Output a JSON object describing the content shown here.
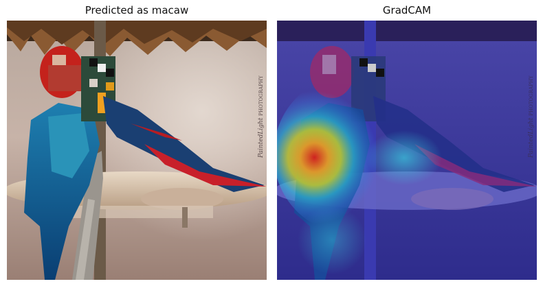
{
  "panels": [
    {
      "title": "Predicted as macaw"
    },
    {
      "title": "GradCAM"
    }
  ],
  "watermark": {
    "script": "PaintedLight",
    "caps": "PHOTOGRAPHY"
  }
}
